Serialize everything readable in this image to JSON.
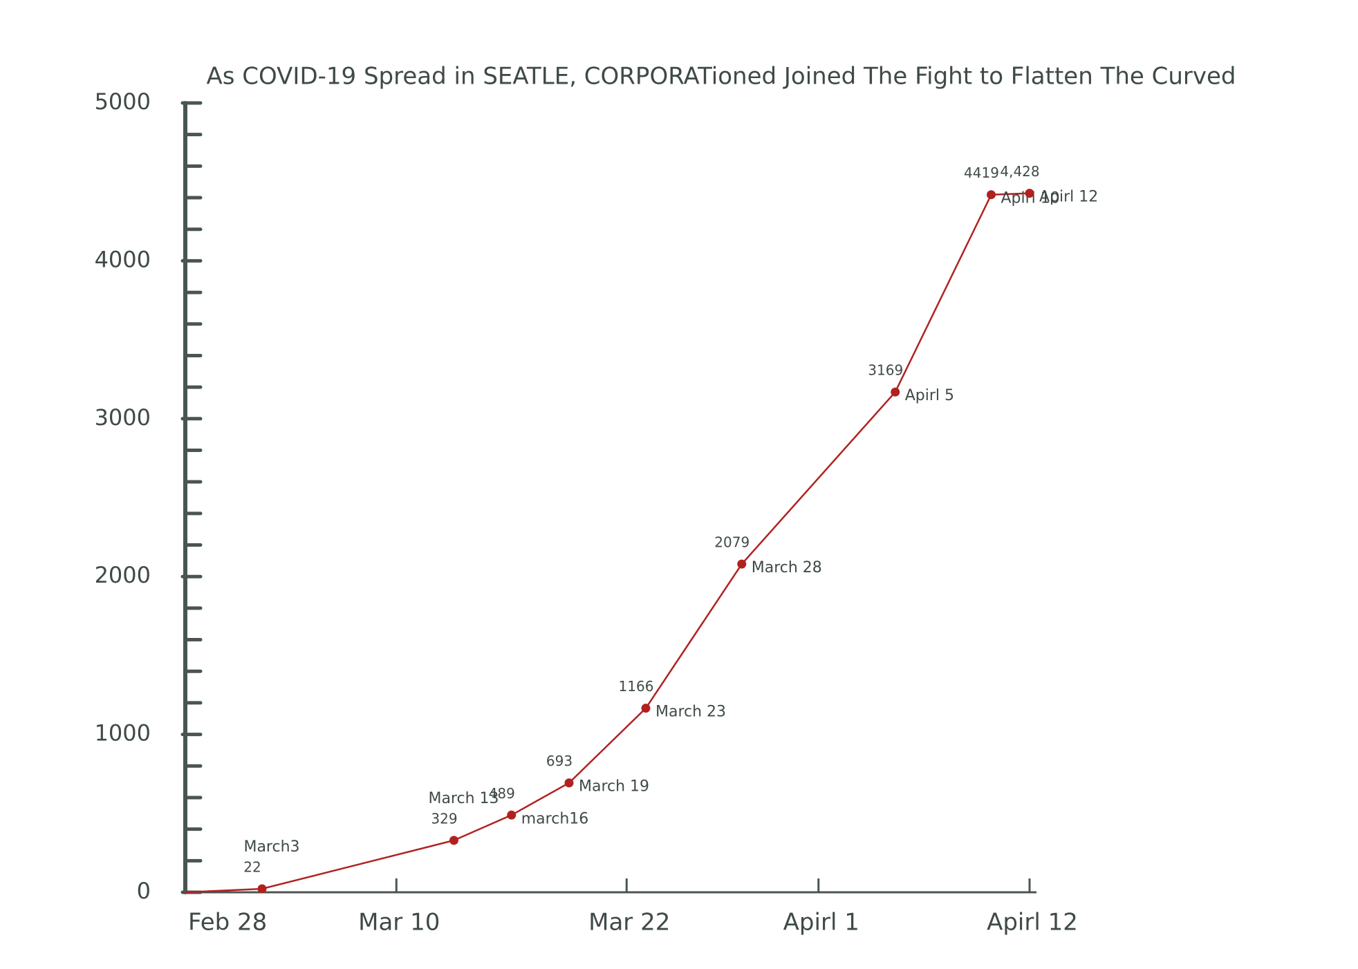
{
  "chart_data": {
    "type": "line",
    "title": "As COVID-19 Spread in SEATLE, CORPORATioned Joined The Fight to Flatten The Curved",
    "x": [
      "Feb 28",
      "Mar 3",
      "Mar 13",
      "Mar 16",
      "Mar 19",
      "Mar 23",
      "Mar 28",
      "Apr 5",
      "Apr 10",
      "Apr 12"
    ],
    "point_labels": [
      null,
      "March3",
      "March 13",
      "march16",
      "March 19",
      "March 23",
      "March 28",
      "Apirl 5",
      "Apirl 10",
      "Apirl 12"
    ],
    "series": [
      {
        "name": null,
        "color": "#b0221f",
        "values": [
          0,
          22,
          329,
          489,
          693,
          1166,
          2079,
          3169,
          4419,
          4428
        ],
        "value_labels": [
          null,
          "22",
          "329",
          "489",
          "693",
          "1166",
          "2079",
          "3169",
          "4419",
          "4,428"
        ]
      }
    ],
    "xlim": [
      "Feb 28",
      "Apr 12"
    ],
    "xticks": [
      {
        "value": "Feb 28",
        "label": "Feb 28"
      },
      {
        "value": "Mar 10",
        "label": "Mar 10"
      },
      {
        "value": "Mar 22",
        "label": "Mar 22"
      },
      {
        "value": "Apr 1",
        "label": "Apirl 1"
      },
      {
        "value": "Apr 12",
        "label": "Apirl 12"
      }
    ],
    "ylim": [
      0,
      5000
    ],
    "yticks": [
      0,
      1000,
      2000,
      3000,
      4000,
      5000
    ],
    "minor_yticks": [
      200,
      400,
      600,
      800,
      1200,
      1400,
      1600,
      1800,
      2200,
      2400,
      2600,
      2800,
      3200,
      3400,
      3600,
      3800,
      4200,
      4400,
      4600,
      4800
    ],
    "axis_color": "#4a5553"
  }
}
